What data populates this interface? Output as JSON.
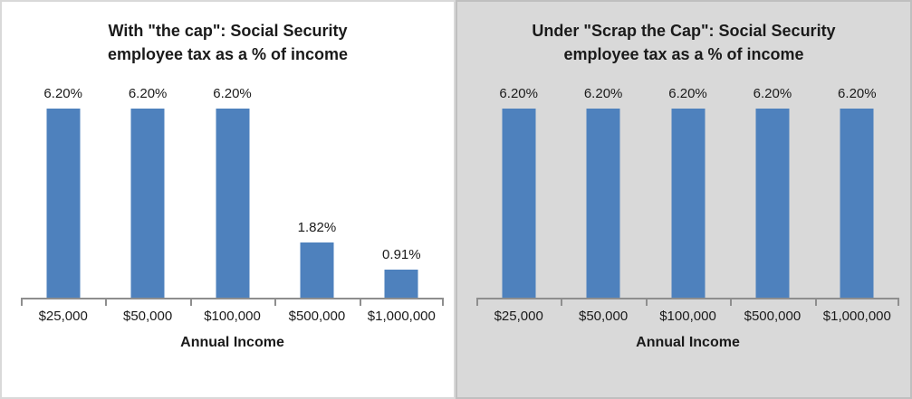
{
  "figure": {
    "xlabel": "Annual Income"
  },
  "chart_data": [
    {
      "type": "bar",
      "title": "With \"the cap\": Social Security employee tax as a % of income",
      "title_lines": [
        "With \"the cap\": Social Security",
        "employee tax as a % of income"
      ],
      "categories": [
        "$25,000",
        "$50,000",
        "$100,000",
        "$500,000",
        "$1,000,000"
      ],
      "values": [
        6.2,
        6.2,
        6.2,
        1.82,
        0.91
      ],
      "data_labels": [
        "6.20%",
        "6.20%",
        "6.20%",
        "1.82%",
        "0.91%"
      ],
      "xlabel": "Annual Income",
      "ylabel": "",
      "ylim": [
        0,
        6.2
      ],
      "grid": false,
      "legend": "none",
      "y_axis_visible": false,
      "background": "#ffffff",
      "border_color": "#d9d9d9",
      "bar_color": "#4e81bd",
      "axis_color": "#8e8e8e",
      "text_color": "#1a1a1a"
    },
    {
      "type": "bar",
      "title": "Under \"Scrap the Cap\": Social Security employee tax as a % of income",
      "title_lines": [
        "Under \"Scrap the Cap\": Social Security",
        "employee tax as a % of income"
      ],
      "categories": [
        "$25,000",
        "$50,000",
        "$100,000",
        "$500,000",
        "$1,000,000"
      ],
      "values": [
        6.2,
        6.2,
        6.2,
        6.2,
        6.2
      ],
      "data_labels": [
        "6.20%",
        "6.20%",
        "6.20%",
        "6.20%",
        "6.20%"
      ],
      "xlabel": "Annual Income",
      "ylabel": "",
      "ylim": [
        0,
        6.2
      ],
      "grid": false,
      "legend": "none",
      "y_axis_visible": false,
      "background": "#d9d9d9",
      "border_color": "#bfbfbf",
      "bar_color": "#4e81bd",
      "axis_color": "#8e8e8e",
      "text_color": "#1a1a1a"
    }
  ]
}
